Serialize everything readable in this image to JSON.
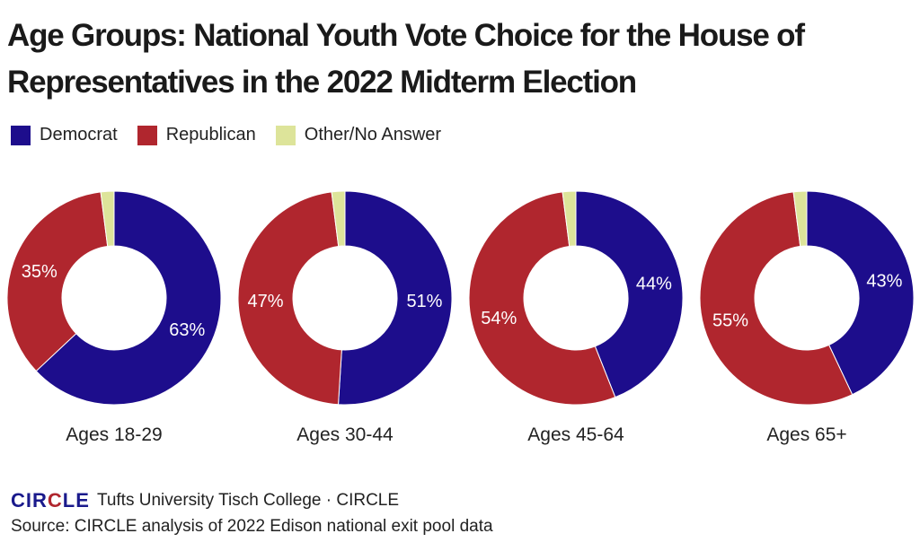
{
  "title": "Age Groups: National Youth Vote Choice for the House of Representatives in the 2022 Midterm Election",
  "legend": [
    {
      "label": "Democrat",
      "color": "#1d0d8c"
    },
    {
      "label": "Republican",
      "color": "#b0262e"
    },
    {
      "label": "Other/No Answer",
      "color": "#dde49a"
    }
  ],
  "footer": {
    "logo": "CIRCLE",
    "brand": "Tufts University Tisch College · CIRCLE",
    "source": "Source: CIRCLE analysis of 2022 Edison national exit pool data"
  },
  "chart_data": {
    "type": "pie",
    "variant": "donut",
    "categories": [
      "Ages 18-29",
      "Ages 30-44",
      "Ages 45-64",
      "Ages 65+"
    ],
    "series": [
      {
        "name": "Democrat",
        "values": [
          63,
          51,
          44,
          43
        ],
        "labels": [
          "63%",
          "51%",
          "44%",
          "43%"
        ]
      },
      {
        "name": "Republican",
        "values": [
          35,
          47,
          54,
          55
        ],
        "labels": [
          "35%",
          "47%",
          "54%",
          "55%"
        ]
      },
      {
        "name": "Other/No Answer",
        "values": [
          2,
          2,
          2,
          2
        ]
      }
    ]
  }
}
